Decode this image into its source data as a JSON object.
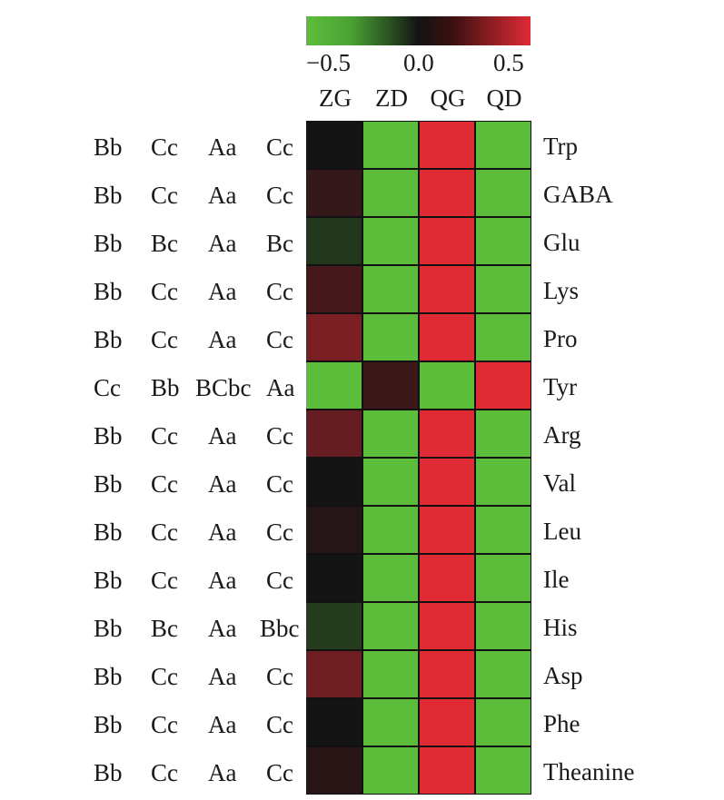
{
  "chart_data": {
    "type": "heatmap",
    "columns": [
      "ZG",
      "ZD",
      "QG",
      "QD"
    ],
    "rows": [
      "Trp",
      "GABA",
      "Glu",
      "Lys",
      "Pro",
      "Tyr",
      "Arg",
      "Val",
      "Leu",
      "Ile",
      "His",
      "Asp",
      "Phe",
      "Theanine"
    ],
    "values": [
      [
        0.0,
        -0.5,
        0.5,
        -0.5
      ],
      [
        0.08,
        -0.5,
        0.5,
        -0.5
      ],
      [
        -0.1,
        -0.5,
        0.5,
        -0.5
      ],
      [
        0.12,
        -0.5,
        0.5,
        -0.5
      ],
      [
        0.25,
        -0.5,
        0.5,
        -0.5
      ],
      [
        -0.5,
        0.1,
        -0.5,
        0.5
      ],
      [
        0.2,
        -0.5,
        0.5,
        -0.5
      ],
      [
        0.0,
        -0.5,
        0.5,
        -0.5
      ],
      [
        0.04,
        -0.5,
        0.5,
        -0.5
      ],
      [
        0.0,
        -0.5,
        0.5,
        -0.5
      ],
      [
        -0.12,
        -0.5,
        0.5,
        -0.5
      ],
      [
        0.22,
        -0.5,
        0.5,
        -0.5
      ],
      [
        0.0,
        -0.5,
        0.5,
        -0.5
      ],
      [
        0.05,
        -0.5,
        0.5,
        -0.5
      ]
    ],
    "significance_letters": [
      [
        "Bb",
        "Cc",
        "Aa",
        "Cc"
      ],
      [
        "Bb",
        "Cc",
        "Aa",
        "Cc"
      ],
      [
        "Bb",
        "Bc",
        "Aa",
        "Bc"
      ],
      [
        "Bb",
        "Cc",
        "Aa",
        "Cc"
      ],
      [
        "Bb",
        "Cc",
        "Aa",
        "Cc"
      ],
      [
        "Cc",
        "Bb",
        "BCbc",
        "Aa"
      ],
      [
        "Bb",
        "Cc",
        "Aa",
        "Cc"
      ],
      [
        "Bb",
        "Cc",
        "Aa",
        "Cc"
      ],
      [
        "Bb",
        "Cc",
        "Aa",
        "Cc"
      ],
      [
        "Bb",
        "Cc",
        "Aa",
        "Cc"
      ],
      [
        "Bb",
        "Bc",
        "Aa",
        "Bbc"
      ],
      [
        "Bb",
        "Cc",
        "Aa",
        "Cc"
      ],
      [
        "Bb",
        "Cc",
        "Aa",
        "Cc"
      ],
      [
        "Bb",
        "Cc",
        "Aa",
        "Cc"
      ]
    ],
    "colorbar": {
      "range": [
        -0.5,
        0.5
      ],
      "tick_labels": [
        "−0.5",
        "0.0",
        "0.5"
      ],
      "low_color": "#5cbd3a",
      "mid_color": "#141414",
      "high_color": "#e02a34"
    },
    "legend_placement": "top"
  }
}
